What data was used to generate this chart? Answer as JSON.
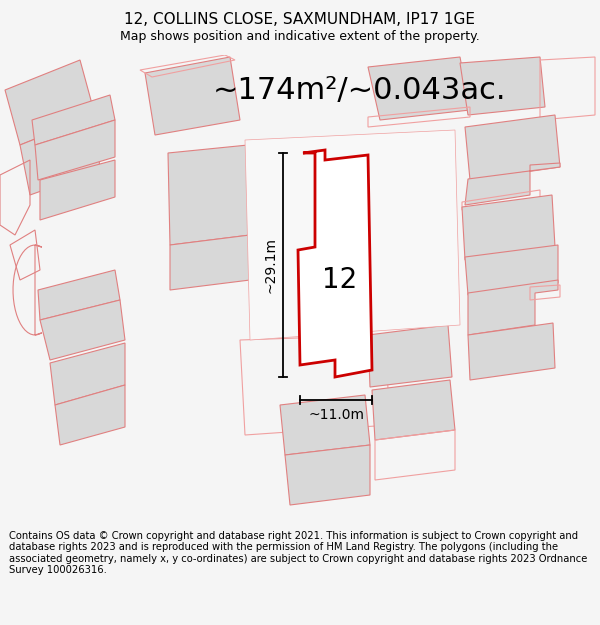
{
  "title_line1": "12, COLLINS CLOSE, SAXMUNDHAM, IP17 1GE",
  "title_line2": "Map shows position and indicative extent of the property.",
  "area_text": "~174m²/~0.043ac.",
  "label_number": "12",
  "dim_vertical": "~29.1m",
  "dim_horizontal": "~11.0m",
  "footer_text": "Contains OS data © Crown copyright and database right 2021. This information is subject to Crown copyright and database rights 2023 and is reproduced with the permission of HM Land Registry. The polygons (including the associated geometry, namely x, y co-ordinates) are subject to Crown copyright and database rights 2023 Ordnance Survey 100026316.",
  "bg_color": "#f5f5f5",
  "map_bg": "#ffffff",
  "plot_fill": "#ffffff",
  "plot_stroke": "#cc0000",
  "neighbor_fill": "#d8d8d8",
  "neighbor_stroke": "#e08080",
  "neighbor_stroke2": "#f0a0a0",
  "title_fontsize": 11,
  "subtitle_fontsize": 9,
  "area_fontsize": 22,
  "label_fontsize": 20,
  "dim_fontsize": 10,
  "footer_fontsize": 7.2
}
